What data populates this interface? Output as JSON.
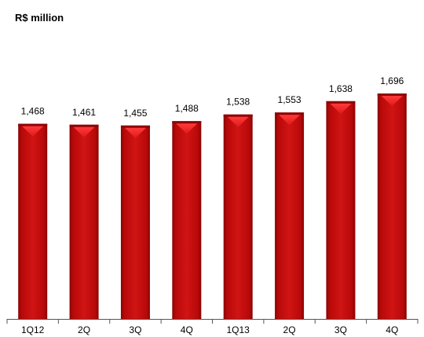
{
  "chart_data": {
    "type": "bar",
    "title": "R$ million",
    "categories": [
      "1Q12",
      "2Q",
      "3Q",
      "4Q",
      "1Q13",
      "2Q",
      "3Q",
      "4Q"
    ],
    "values": [
      1468,
      1461,
      1455,
      1488,
      1538,
      1553,
      1638,
      1696
    ],
    "value_labels": [
      "1,468",
      "1,461",
      "1,455",
      "1,488",
      "1,538",
      "1,553",
      "1,638",
      "1,696"
    ],
    "ylim": [
      0,
      1800
    ],
    "grid": false,
    "legend": "none",
    "colors": {
      "bar_main": "#c40d0d",
      "bar_light": "#e01a1a",
      "bar_dark": "#8e0505",
      "axis": "#555555"
    }
  }
}
